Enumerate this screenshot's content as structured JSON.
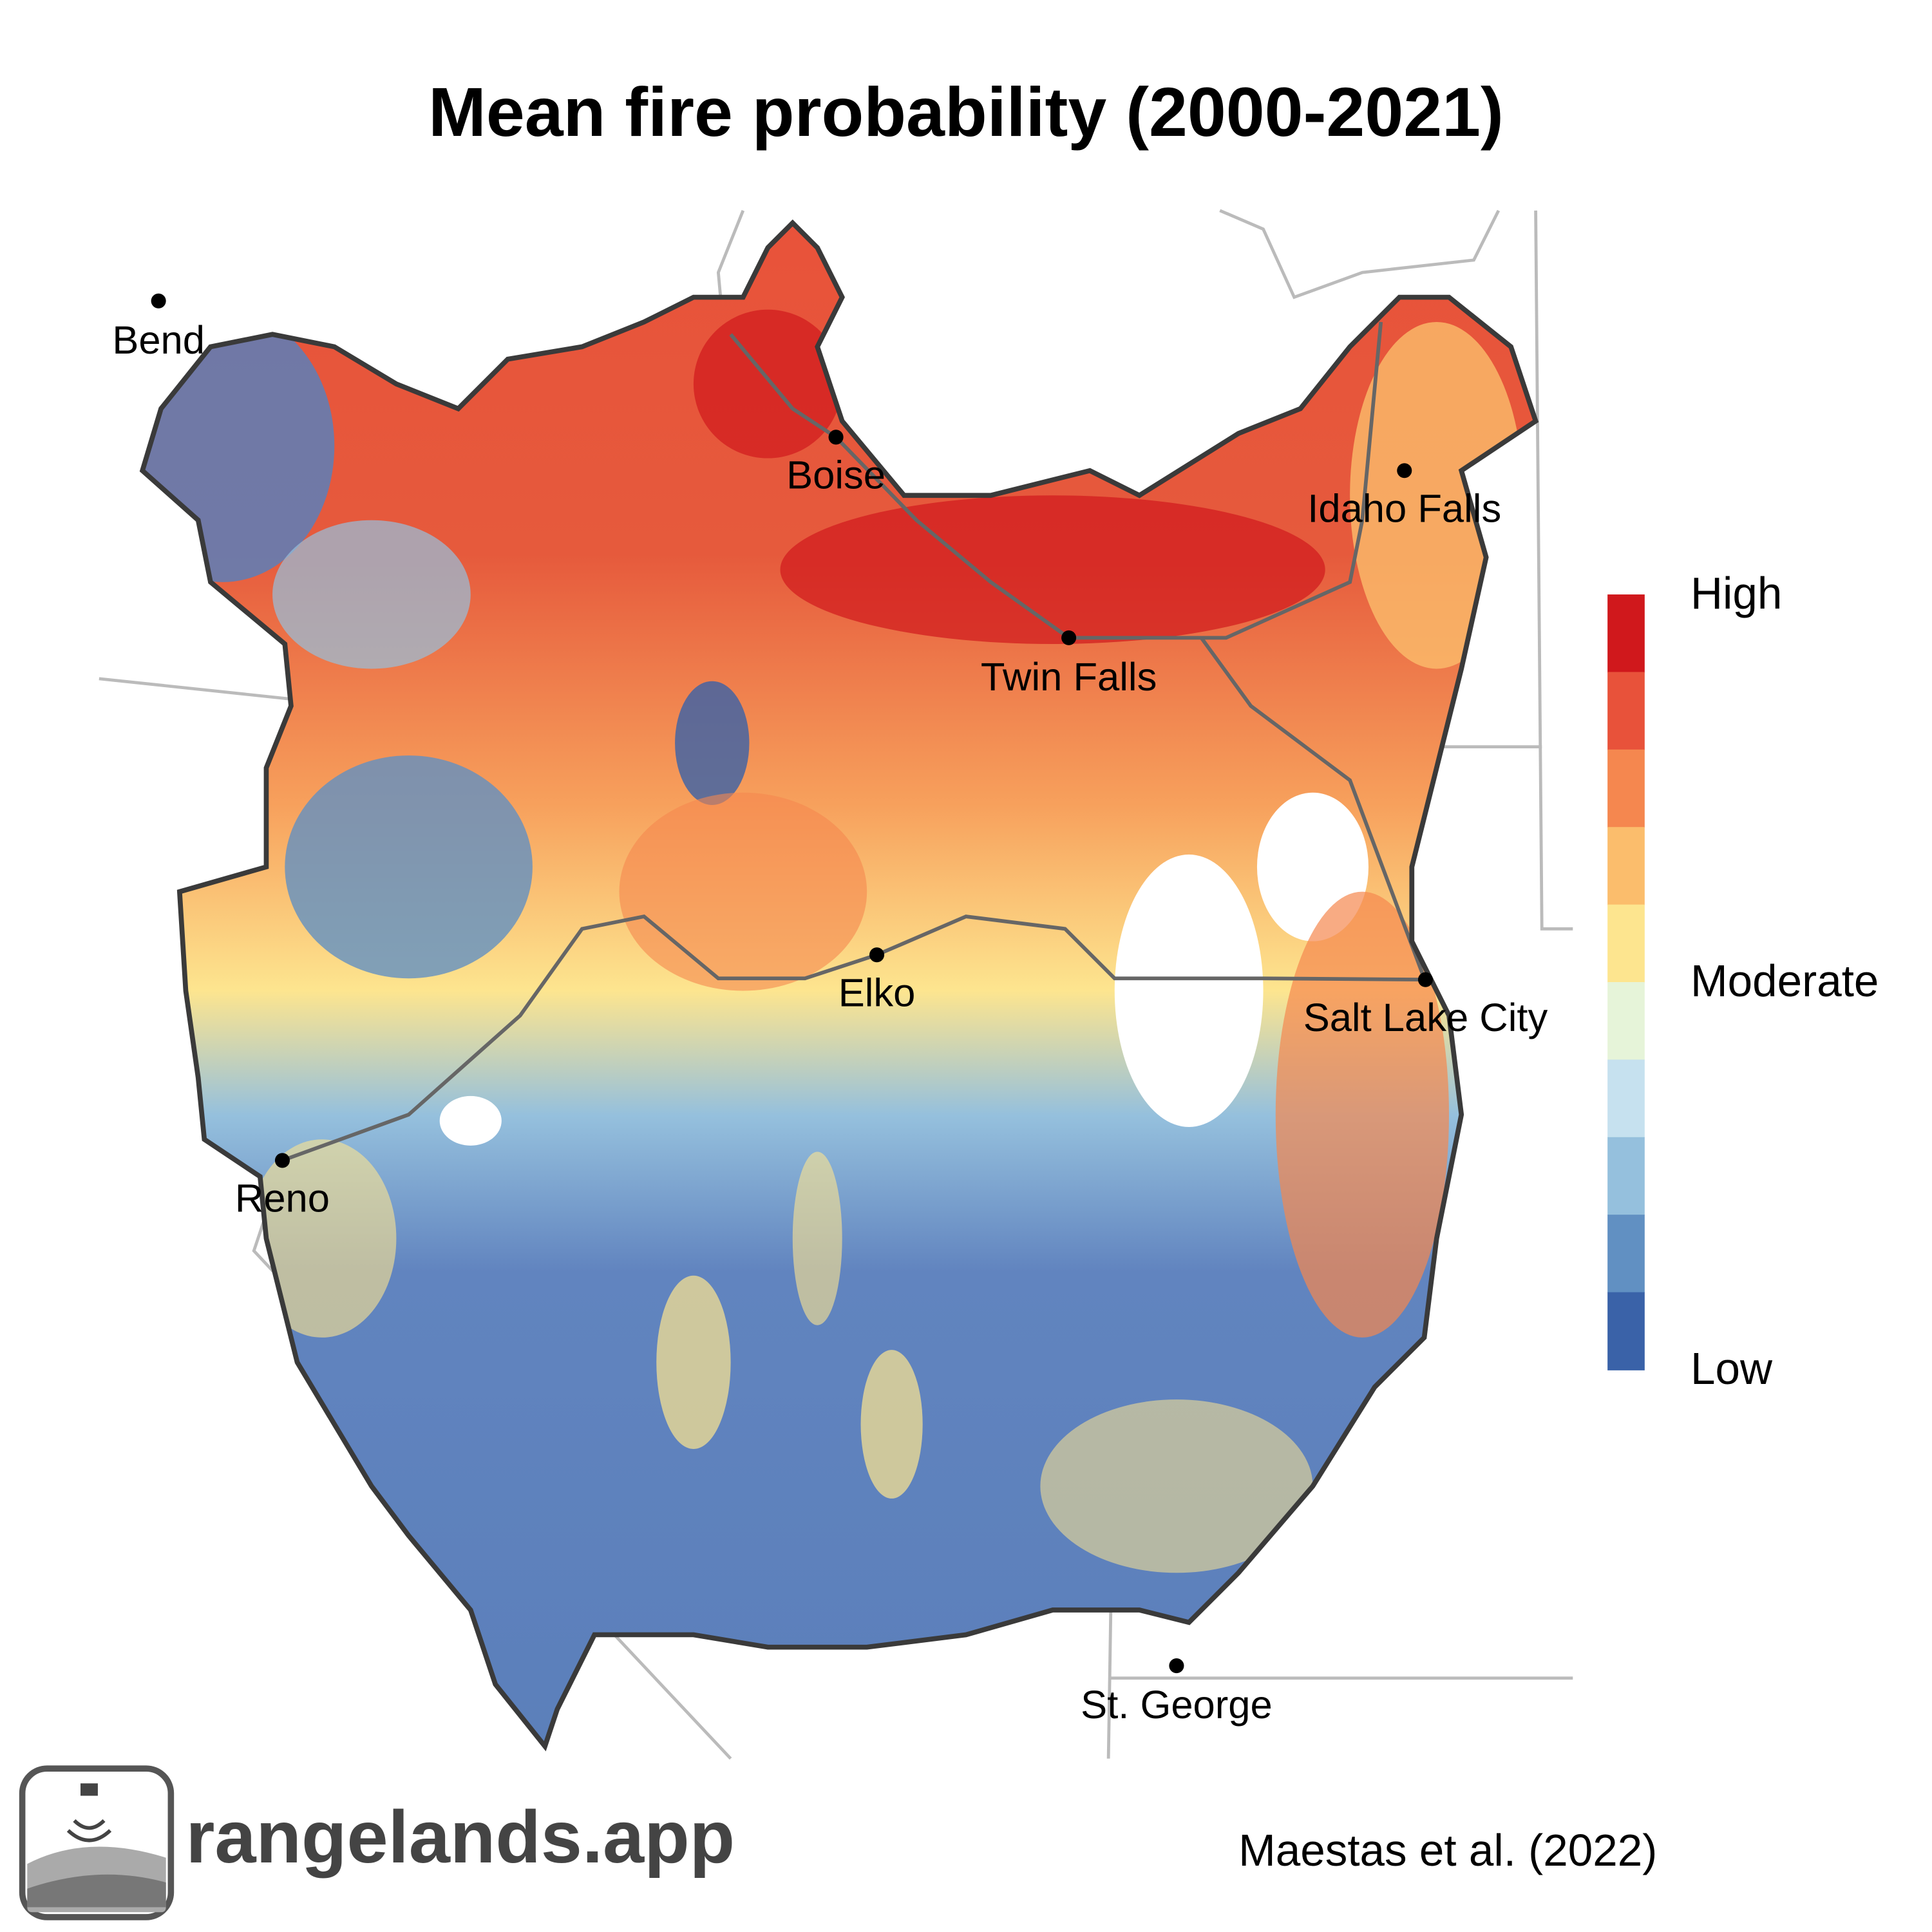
{
  "title": "Mean fire probability (2000-2021)",
  "cities": [
    "Bend",
    "Boise",
    "Idaho Falls",
    "Twin Falls",
    "Elko",
    "Salt Lake City",
    "Reno",
    "St. George"
  ],
  "legend": {
    "labels": [
      "High",
      "Moderate",
      "Low"
    ],
    "colors": [
      "#d0181c",
      "#e8523a",
      "#f5874f",
      "#fbbd6c",
      "#fde58f",
      "#e6f4d9",
      "#c6e1ef",
      "#95c0dd",
      "#6190c2",
      "#3a62a8"
    ]
  },
  "brand": "rangelands.app",
  "citation": "Maestas et al. (2022)"
}
